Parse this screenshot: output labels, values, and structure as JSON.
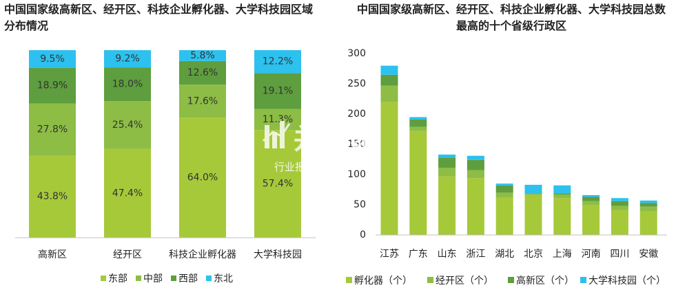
{
  "colors": {
    "east": "#a6c93a",
    "central": "#8dbd45",
    "west": "#5e9e3e",
    "northeast": "#2cc1ee"
  },
  "left": {
    "title": "中国国家级高新区、经开区、科技企业孵化器、大学科技园区域分布情况"
  },
  "right": {
    "title": "中国国家级高新区、经开区、科技企业孵化器、大学科技园总数最高的十个省级行政区"
  },
  "watermark": {
    "main": "并购家",
    "sub": "行业报告 IPOIPO.CN"
  },
  "chart_data": [
    {
      "type": "bar",
      "stacked": true,
      "normalized": true,
      "categories": [
        "高新区",
        "经开区",
        "科技企业孵化器",
        "大学科技园"
      ],
      "series": [
        {
          "name": "东部",
          "color": "#a6c93a",
          "values": [
            43.8,
            47.4,
            64.0,
            57.4
          ],
          "labels": [
            "43.8%",
            "47.4%",
            "64.0%",
            "57.4%"
          ]
        },
        {
          "name": "中部",
          "color": "#8dbd45",
          "values": [
            27.8,
            25.4,
            17.6,
            11.3
          ],
          "labels": [
            "27.8%",
            "25.4%",
            "17.6%",
            "11.3%"
          ]
        },
        {
          "name": "西部",
          "color": "#5e9e3e",
          "values": [
            18.9,
            18.0,
            12.6,
            19.1
          ],
          "labels": [
            "18.9%",
            "18.0%",
            "12.6%",
            "19.1%"
          ]
        },
        {
          "name": "东北",
          "color": "#2cc1ee",
          "values": [
            9.5,
            9.2,
            5.8,
            12.2
          ],
          "labels": [
            "9.5%",
            "9.2%",
            "5.8%",
            "12.2%"
          ]
        }
      ],
      "legend": "bottom",
      "grid": false
    },
    {
      "type": "bar",
      "stacked": true,
      "categories": [
        "江苏",
        "广东",
        "山东",
        "浙江",
        "湖北",
        "北京",
        "上海",
        "河南",
        "四川",
        "安徽"
      ],
      "series": [
        {
          "name": "孵化器（个）",
          "color": "#a6c93a",
          "values": [
            220,
            172,
            97,
            94,
            62,
            66,
            61,
            50,
            41,
            39
          ]
        },
        {
          "name": "经开区（个）",
          "color": "#8dbd45",
          "values": [
            27,
            7,
            14,
            13,
            8,
            2,
            6,
            6,
            7,
            8
          ]
        },
        {
          "name": "高新区（个）",
          "color": "#5e9e3e",
          "values": [
            18,
            12,
            17,
            17,
            12,
            1,
            2,
            7,
            8,
            6
          ]
        },
        {
          "name": "大学科技园（个）",
          "color": "#2cc1ee",
          "values": [
            15,
            4,
            5,
            7,
            3,
            14,
            13,
            3,
            5,
            4
          ]
        }
      ],
      "ylim": [
        0,
        300
      ],
      "yticks": [
        0,
        50,
        100,
        150,
        200,
        250,
        300
      ],
      "legend": "bottom",
      "grid": false
    }
  ]
}
